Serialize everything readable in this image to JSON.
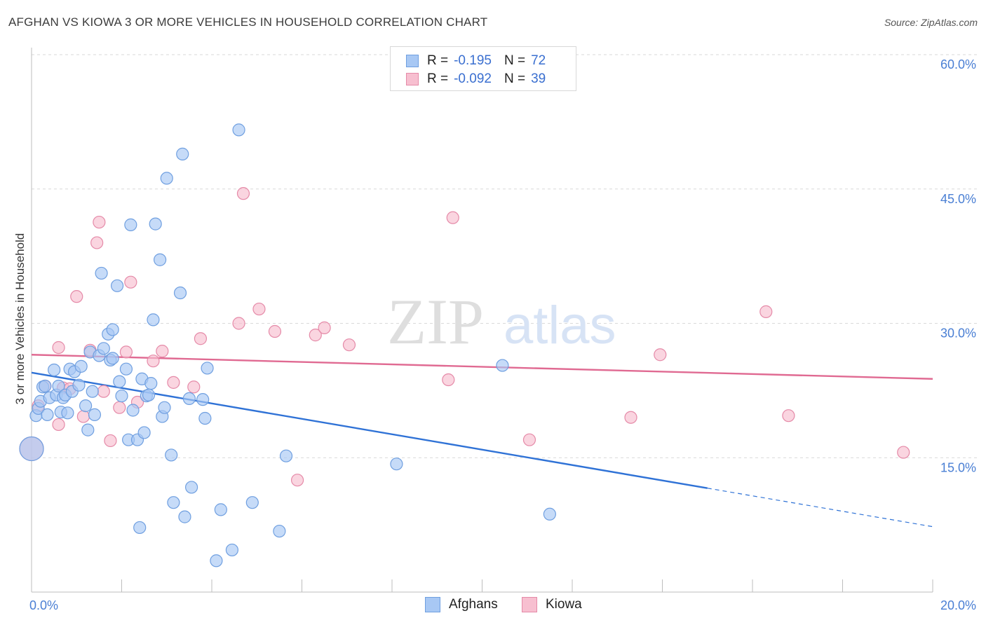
{
  "title": "AFGHAN VS KIOWA 3 OR MORE VEHICLES IN HOUSEHOLD CORRELATION CHART",
  "source": "Source: ZipAtlas.com",
  "watermark": {
    "zip": "ZIP",
    "atlas": "atlas"
  },
  "legend": {
    "rows": [
      {
        "r_label": "R =",
        "r_value": "-0.195",
        "n_label": "N =",
        "n_value": "72",
        "color": "#a8c8f4",
        "border": "#6f9fe0"
      },
      {
        "r_label": "R =",
        "r_value": "-0.092",
        "n_label": "N =",
        "n_value": "39",
        "color": "#f7bfd0",
        "border": "#e58aa8"
      }
    ]
  },
  "bottom_legend": [
    {
      "label": "Afghans",
      "color": "#a8c8f4",
      "border": "#6f9fe0"
    },
    {
      "label": "Kiowa",
      "color": "#f7bfd0",
      "border": "#e58aa8"
    }
  ],
  "chart_data": {
    "type": "scatter",
    "title": "AFGHAN VS KIOWA 3 OR MORE VEHICLES IN HOUSEHOLD CORRELATION CHART",
    "xlabel": "",
    "ylabel": "3 or more Vehicles in Household",
    "xlim": [
      0,
      20
    ],
    "ylim": [
      0,
      60
    ],
    "x_tick_labels": [
      "0.0%",
      "20.0%"
    ],
    "y_tick_values": [
      15,
      30,
      45,
      60
    ],
    "y_tick_labels": [
      "15.0%",
      "30.0%",
      "45.0%",
      "60.0%"
    ],
    "grid": true,
    "legend_position": "top-center",
    "series": [
      {
        "name": "Afghans",
        "color": "#6f9fe0",
        "fill": "#a8c8f4",
        "trend": {
          "x": [
            0,
            15
          ],
          "y": [
            24.5,
            11.6
          ],
          "dashed_to_x": 20,
          "dashed_to_y": 7.3,
          "color": "#2f72d6"
        },
        "points": [
          [
            0.1,
            19.7
          ],
          [
            0.15,
            20.5
          ],
          [
            0.2,
            21.3
          ],
          [
            0.25,
            22.9
          ],
          [
            0.3,
            23.0
          ],
          [
            0.35,
            19.8
          ],
          [
            0.4,
            21.7
          ],
          [
            0.5,
            24.8
          ],
          [
            0.55,
            22.0
          ],
          [
            0.6,
            23.0
          ],
          [
            0.65,
            20.1
          ],
          [
            0.7,
            21.7
          ],
          [
            0.75,
            22.0
          ],
          [
            0.8,
            20.0
          ],
          [
            0.85,
            24.9
          ],
          [
            0.9,
            22.4
          ],
          [
            0.95,
            24.6
          ],
          [
            1.05,
            23.1
          ],
          [
            1.1,
            25.2
          ],
          [
            1.2,
            20.8
          ],
          [
            1.25,
            18.1
          ],
          [
            1.3,
            26.8
          ],
          [
            1.35,
            22.4
          ],
          [
            1.4,
            19.8
          ],
          [
            1.5,
            26.4
          ],
          [
            1.55,
            35.6
          ],
          [
            1.6,
            27.2
          ],
          [
            1.7,
            28.8
          ],
          [
            1.75,
            25.9
          ],
          [
            1.8,
            26.1
          ],
          [
            1.8,
            29.3
          ],
          [
            1.9,
            34.2
          ],
          [
            1.95,
            23.5
          ],
          [
            2.0,
            21.9
          ],
          [
            2.1,
            24.9
          ],
          [
            2.15,
            17.0
          ],
          [
            2.2,
            41.0
          ],
          [
            2.25,
            20.3
          ],
          [
            2.35,
            17.0
          ],
          [
            2.4,
            7.2
          ],
          [
            2.45,
            23.8
          ],
          [
            2.5,
            17.8
          ],
          [
            2.55,
            21.9
          ],
          [
            2.6,
            22.0
          ],
          [
            2.65,
            23.3
          ],
          [
            2.7,
            30.4
          ],
          [
            2.75,
            41.1
          ],
          [
            2.85,
            37.1
          ],
          [
            2.9,
            19.6
          ],
          [
            2.95,
            20.6
          ],
          [
            3.0,
            46.2
          ],
          [
            3.1,
            15.3
          ],
          [
            3.15,
            10.0
          ],
          [
            3.3,
            33.4
          ],
          [
            3.35,
            48.9
          ],
          [
            3.4,
            8.4
          ],
          [
            3.5,
            21.6
          ],
          [
            3.55,
            11.7
          ],
          [
            3.8,
            21.5
          ],
          [
            3.85,
            19.4
          ],
          [
            3.9,
            25.0
          ],
          [
            4.1,
            3.5
          ],
          [
            4.2,
            9.2
          ],
          [
            4.45,
            4.7
          ],
          [
            4.6,
            51.6
          ],
          [
            4.9,
            10.0
          ],
          [
            5.5,
            6.8
          ],
          [
            5.65,
            15.2
          ],
          [
            8.1,
            14.3
          ],
          [
            10.45,
            25.3
          ],
          [
            11.5,
            8.7
          ],
          [
            0.0,
            16.0
          ]
        ]
      },
      {
        "name": "Kiowa",
        "color": "#e58aa8",
        "fill": "#f7bfd0",
        "trend": {
          "x": [
            0,
            20
          ],
          "y": [
            26.5,
            23.8
          ],
          "color": "#e06a92"
        },
        "points": [
          [
            0.15,
            20.8
          ],
          [
            0.3,
            23.0
          ],
          [
            0.6,
            27.3
          ],
          [
            0.6,
            18.7
          ],
          [
            0.7,
            22.8
          ],
          [
            0.85,
            22.7
          ],
          [
            1.0,
            33.0
          ],
          [
            1.15,
            19.6
          ],
          [
            1.3,
            27.0
          ],
          [
            1.45,
            39.0
          ],
          [
            1.5,
            41.3
          ],
          [
            1.6,
            22.4
          ],
          [
            1.75,
            16.9
          ],
          [
            1.95,
            20.6
          ],
          [
            2.1,
            26.8
          ],
          [
            2.2,
            34.6
          ],
          [
            2.35,
            21.2
          ],
          [
            2.7,
            25.8
          ],
          [
            2.9,
            26.9
          ],
          [
            3.15,
            23.4
          ],
          [
            3.6,
            22.9
          ],
          [
            3.75,
            28.3
          ],
          [
            4.6,
            30.0
          ],
          [
            4.7,
            44.5
          ],
          [
            5.05,
            31.6
          ],
          [
            5.4,
            29.1
          ],
          [
            5.9,
            12.5
          ],
          [
            6.3,
            28.7
          ],
          [
            6.5,
            29.5
          ],
          [
            7.05,
            27.6
          ],
          [
            9.25,
            23.7
          ],
          [
            9.35,
            41.8
          ],
          [
            11.05,
            17.0
          ],
          [
            13.3,
            19.5
          ],
          [
            13.95,
            26.5
          ],
          [
            16.3,
            31.3
          ],
          [
            16.8,
            19.7
          ],
          [
            19.35,
            15.6
          ],
          [
            0.0,
            16.0
          ]
        ]
      }
    ]
  }
}
